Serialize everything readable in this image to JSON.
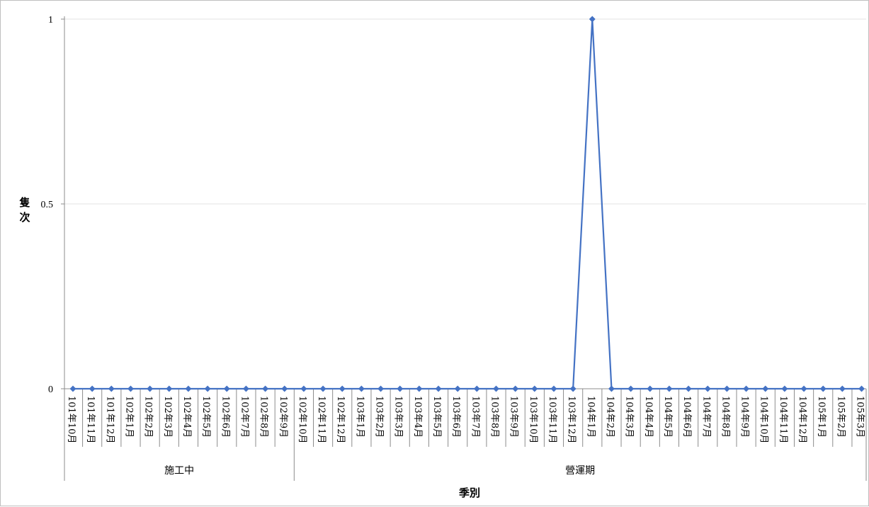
{
  "chart_data": {
    "type": "line",
    "title": "",
    "xlabel": "季別",
    "ylabel": "隻次",
    "ylim": [
      0,
      1
    ],
    "yticks": [
      "0",
      "0.5",
      "1"
    ],
    "grid": true,
    "legend": "none",
    "line_color": "#4472c4",
    "categories": [
      "101年10月",
      "101年11月",
      "101年12月",
      "102年1月",
      "102年2月",
      "102年3月",
      "102年4月",
      "102年5月",
      "102年6月",
      "102年7月",
      "102年8月",
      "102年9月",
      "102年10月",
      "102年11月",
      "102年12月",
      "103年1月",
      "103年2月",
      "103年3月",
      "103年4月",
      "103年5月",
      "103年6月",
      "103年7月",
      "103年8月",
      "103年9月",
      "103年10月",
      "103年11月",
      "103年12月",
      "104年1月",
      "104年2月",
      "104年3月",
      "104年4月",
      "104年5月",
      "104年6月",
      "104年7月",
      "104年8月",
      "104年9月",
      "104年10月",
      "104年11月",
      "104年12月",
      "105年1月",
      "105年2月",
      "105年3月"
    ],
    "groups": [
      {
        "label": "施工中",
        "count": 12
      },
      {
        "label": "營運期",
        "count": 30
      }
    ],
    "series": [
      {
        "values": [
          0,
          0,
          0,
          0,
          0,
          0,
          0,
          0,
          0,
          0,
          0,
          0,
          0,
          0,
          0,
          0,
          0,
          0,
          0,
          0,
          0,
          0,
          0,
          0,
          0,
          0,
          0,
          1,
          0,
          0,
          0,
          0,
          0,
          0,
          0,
          0,
          0,
          0,
          0,
          0,
          0,
          0
        ]
      }
    ]
  }
}
